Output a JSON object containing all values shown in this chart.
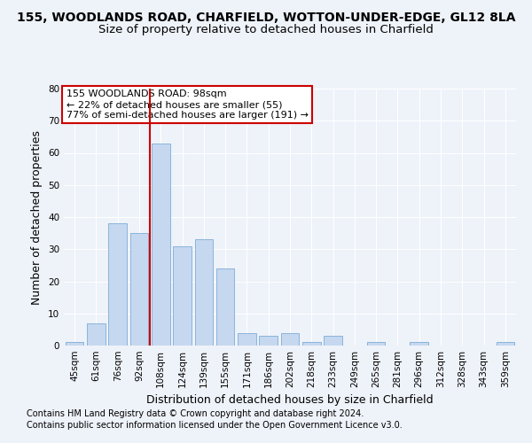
{
  "title": "155, WOODLANDS ROAD, CHARFIELD, WOTTON-UNDER-EDGE, GL12 8LA",
  "subtitle": "Size of property relative to detached houses in Charfield",
  "xlabel": "Distribution of detached houses by size in Charfield",
  "ylabel": "Number of detached properties",
  "categories": [
    "45sqm",
    "61sqm",
    "76sqm",
    "92sqm",
    "108sqm",
    "124sqm",
    "139sqm",
    "155sqm",
    "171sqm",
    "186sqm",
    "202sqm",
    "218sqm",
    "233sqm",
    "249sqm",
    "265sqm",
    "281sqm",
    "296sqm",
    "312sqm",
    "328sqm",
    "343sqm",
    "359sqm"
  ],
  "values": [
    1,
    7,
    38,
    35,
    63,
    31,
    33,
    24,
    4,
    3,
    4,
    1,
    3,
    0,
    1,
    0,
    1,
    0,
    0,
    0,
    1
  ],
  "bar_color": "#c5d8f0",
  "bar_edge_color": "#7eadd4",
  "vline_x": 3.5,
  "vline_color": "#cc0000",
  "annotation_text": "155 WOODLANDS ROAD: 98sqm\n← 22% of detached houses are smaller (55)\n77% of semi-detached houses are larger (191) →",
  "annotation_box_color": "#ffffff",
  "annotation_box_edge": "#cc0000",
  "ylim": [
    0,
    80
  ],
  "yticks": [
    0,
    10,
    20,
    30,
    40,
    50,
    60,
    70,
    80
  ],
  "footnote1": "Contains HM Land Registry data © Crown copyright and database right 2024.",
  "footnote2": "Contains public sector information licensed under the Open Government Licence v3.0.",
  "background_color": "#eef2f9",
  "grid_color": "#ffffff",
  "title_fontsize": 10,
  "subtitle_fontsize": 9.5,
  "axis_label_fontsize": 9,
  "tick_fontsize": 7.5,
  "footnote_fontsize": 7,
  "annot_fontsize": 8
}
